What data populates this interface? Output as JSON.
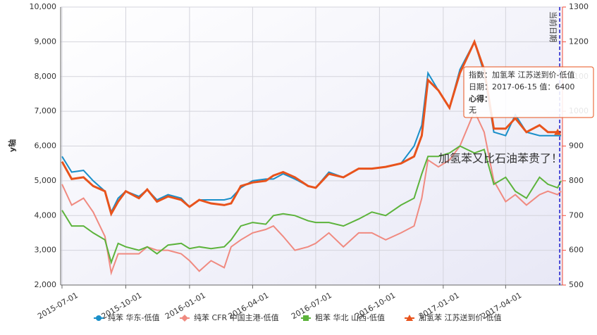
{
  "chart_data": {
    "type": "line",
    "ylabel": "y轴",
    "x": [
      "2015-07-01",
      "2015-07-15",
      "2015-08-01",
      "2015-08-15",
      "2015-09-01",
      "2015-09-10",
      "2015-09-20",
      "2015-10-01",
      "2015-10-20",
      "2015-11-01",
      "2015-11-15",
      "2015-12-01",
      "2015-12-20",
      "2016-01-01",
      "2016-01-15",
      "2016-02-01",
      "2016-02-20",
      "2016-03-01",
      "2016-03-15",
      "2016-04-01",
      "2016-04-20",
      "2016-05-01",
      "2016-05-15",
      "2016-06-01",
      "2016-06-20",
      "2016-07-01",
      "2016-07-20",
      "2016-08-10",
      "2016-09-01",
      "2016-09-20",
      "2016-10-10",
      "2016-11-01",
      "2016-11-20",
      "2016-12-01",
      "2016-12-10",
      "2016-12-25",
      "2017-01-10",
      "2017-01-25",
      "2017-02-15",
      "2017-03-01",
      "2017-03-15",
      "2017-04-01",
      "2017-04-15",
      "2017-05-01",
      "2017-05-20",
      "2017-06-01",
      "2017-06-15",
      "2017-06-20"
    ],
    "series": [
      {
        "name": "纯苯 华东-低值",
        "color": "#1a8fc9",
        "marker": "circle",
        "values": [
          5700,
          5250,
          5300,
          5000,
          4700,
          4100,
          4500,
          4700,
          4550,
          4750,
          4450,
          4600,
          4500,
          4250,
          4450,
          4450,
          4450,
          4500,
          4800,
          5000,
          5050,
          5050,
          5200,
          5050,
          4850,
          4800,
          5250,
          5100,
          5350,
          5350,
          5400,
          5500,
          6000,
          6600,
          8100,
          7600,
          7100,
          8200,
          9000,
          8100,
          6400,
          6300,
          6900,
          6400,
          6300,
          6300,
          6300,
          6300
        ]
      },
      {
        "name": "纯苯 CFR 中国主港-低值",
        "color": "#f08a80",
        "marker": "diamond",
        "axis": "y2",
        "values": [
          790,
          730,
          750,
          710,
          640,
          535,
          590,
          590,
          590,
          610,
          600,
          600,
          590,
          570,
          540,
          570,
          550,
          610,
          630,
          650,
          660,
          670,
          640,
          600,
          610,
          620,
          650,
          610,
          650,
          650,
          630,
          650,
          670,
          750,
          860,
          840,
          860,
          900,
          1000,
          940,
          800,
          740,
          760,
          730,
          760,
          770,
          760,
          770
        ]
      },
      {
        "name": "粗苯 华北 山西-低值",
        "color": "#5cb33b",
        "marker": "square",
        "values": [
          4150,
          3700,
          3700,
          3500,
          3300,
          2650,
          3200,
          3100,
          3000,
          3100,
          2900,
          3150,
          3200,
          3050,
          3100,
          3050,
          3100,
          3300,
          3700,
          3800,
          3750,
          4000,
          4050,
          4000,
          3850,
          3800,
          3800,
          3700,
          3900,
          4100,
          4000,
          4300,
          4500,
          5200,
          5700,
          5700,
          5800,
          6000,
          5800,
          5900,
          4900,
          5100,
          4700,
          4500,
          5100,
          4900,
          4800,
          5000
        ]
      },
      {
        "name": "加氢苯 江苏送到价-低值",
        "color": "#e8531c",
        "marker": "triangle",
        "values": [
          5550,
          5050,
          5100,
          4850,
          4700,
          4050,
          4400,
          4700,
          4500,
          4750,
          4400,
          4550,
          4450,
          4250,
          4450,
          4350,
          4300,
          4350,
          4850,
          4950,
          5000,
          5150,
          5250,
          5100,
          4850,
          4800,
          5200,
          5100,
          5350,
          5350,
          5400,
          5500,
          5700,
          6300,
          7900,
          7600,
          7100,
          8100,
          9000,
          8200,
          6500,
          6500,
          6800,
          6400,
          6600,
          6400,
          6400,
          6400
        ]
      }
    ],
    "xlim": [
      "2015-06-29",
      "2017-06-22"
    ],
    "xticks": [
      "2015-07-01",
      "2015-10-01",
      "2016-01-01",
      "2016-04-01",
      "2016-07-01",
      "2016-10-01",
      "2017-01-01",
      "2017-04-01"
    ],
    "ylim": [
      2000,
      10000
    ],
    "yticks": [
      {
        "value": 2000,
        "label": "2,000"
      },
      {
        "value": 3000,
        "label": "3,000"
      },
      {
        "value": 4000,
        "label": "4,000"
      },
      {
        "value": 5000,
        "label": "5,000"
      },
      {
        "value": 6000,
        "label": "6,000"
      },
      {
        "value": 7000,
        "label": "7,000"
      },
      {
        "value": 8000,
        "label": "8,000"
      },
      {
        "value": 9000,
        "label": "9,000"
      },
      {
        "value": 10000,
        "label": "10,000"
      }
    ],
    "y2lim": [
      500,
      1300
    ],
    "y2ticks": [
      500,
      600,
      700,
      800,
      900,
      1000,
      1100,
      1200,
      1300
    ],
    "y2color": "#f04a3a",
    "grid": true,
    "current_date": {
      "x": "2017-06-18",
      "label": "当前日期"
    },
    "annotation": "加氢苯又比石油苯贵了！",
    "tooltip": {
      "series_index": 3,
      "point_index": 46,
      "line1": "指数：加氢苯 江苏送到价-低值",
      "line2": "日期：2017-06-15 值：6400",
      "line3": "心得：",
      "line4": "无"
    }
  }
}
